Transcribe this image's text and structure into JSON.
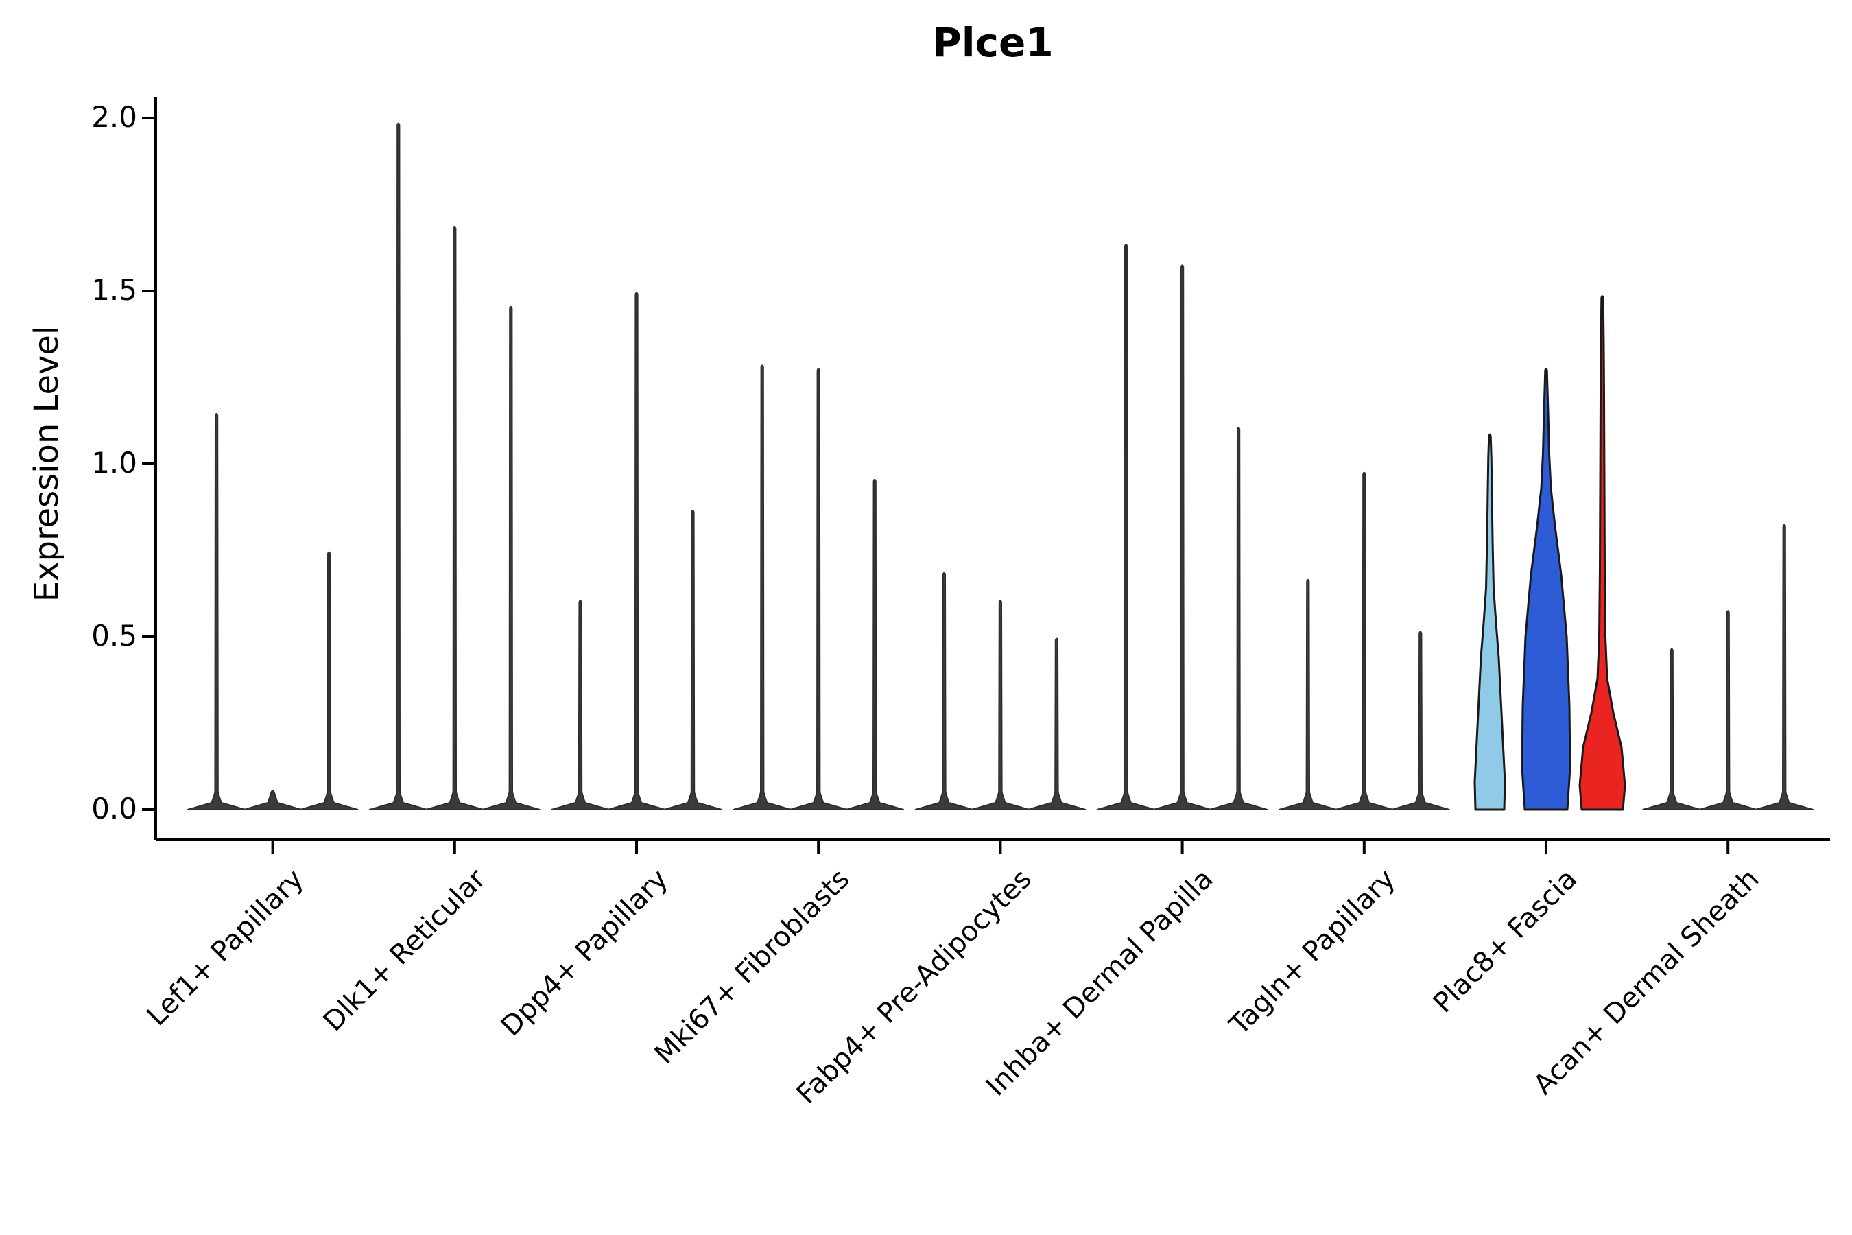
{
  "chart_data": {
    "type": "violin",
    "title": "Plce1",
    "ylabel": "Expression Level",
    "xlabel": "",
    "ylim": [
      0,
      2.05
    ],
    "yticks": [
      0.0,
      0.5,
      1.0,
      1.5,
      2.0
    ],
    "legend": "none",
    "grid": false,
    "violins_per_group": 3,
    "colors": {
      "spike_fill": "#3b3b3b",
      "spike_edge": "#2e2e2e",
      "light_blue": "#8fcbe8",
      "blue": "#2e5cd6",
      "red": "#ea2420",
      "colored_edge": "#1a1a1a"
    },
    "categories": [
      "Lef1+ Papillary",
      "Dlk1+ Reticular",
      "Dpp4+ Papillary",
      "Mki67+ Fibroblasts",
      "Fabp4+ Pre-Adipocytes",
      "Inhba+ Dermal Papilla",
      "Tagln+ Papillary",
      "Plac8+ Fascia",
      "Acan+ Dermal Sheath"
    ],
    "groups": [
      {
        "category": "Lef1+ Papillary",
        "violins": [
          {
            "max": 1.14,
            "style": "spike"
          },
          {
            "max": 0.0,
            "style": "spike"
          },
          {
            "max": 0.74,
            "style": "spike"
          }
        ]
      },
      {
        "category": "Dlk1+ Reticular",
        "violins": [
          {
            "max": 1.98,
            "style": "spike"
          },
          {
            "max": 1.68,
            "style": "spike"
          },
          {
            "max": 1.45,
            "style": "spike"
          }
        ]
      },
      {
        "category": "Dpp4+ Papillary",
        "violins": [
          {
            "max": 0.6,
            "style": "spike"
          },
          {
            "max": 1.49,
            "style": "spike"
          },
          {
            "max": 0.86,
            "style": "spike"
          }
        ]
      },
      {
        "category": "Mki67+ Fibroblasts",
        "violins": [
          {
            "max": 1.28,
            "style": "spike"
          },
          {
            "max": 1.27,
            "style": "spike"
          },
          {
            "max": 0.95,
            "style": "spike"
          }
        ]
      },
      {
        "category": "Fabp4+ Pre-Adipocytes",
        "violins": [
          {
            "max": 0.68,
            "style": "spike"
          },
          {
            "max": 0.6,
            "style": "spike"
          },
          {
            "max": 0.49,
            "style": "spike"
          }
        ]
      },
      {
        "category": "Inhba+ Dermal Papilla",
        "violins": [
          {
            "max": 1.63,
            "style": "spike"
          },
          {
            "max": 1.57,
            "style": "spike"
          },
          {
            "max": 1.1,
            "style": "spike"
          }
        ]
      },
      {
        "category": "Tagln+ Papillary",
        "violins": [
          {
            "max": 0.66,
            "style": "spike"
          },
          {
            "max": 0.97,
            "style": "spike"
          },
          {
            "max": 0.51,
            "style": "spike"
          }
        ]
      },
      {
        "category": "Plac8+ Fascia",
        "violins": [
          {
            "max": 1.08,
            "style": "violin",
            "color": "light_blue",
            "profile": [
              [
                0,
                21
              ],
              [
                0.08,
                22
              ],
              [
                0.2,
                19
              ],
              [
                0.32,
                16
              ],
              [
                0.44,
                13
              ],
              [
                0.54,
                9
              ],
              [
                0.64,
                5.5
              ],
              [
                0.78,
                4
              ],
              [
                0.92,
                3
              ],
              [
                1.02,
                2.2
              ],
              [
                1.08,
                1.2
              ]
            ]
          },
          {
            "max": 1.27,
            "style": "violin",
            "color": "blue",
            "profile": [
              [
                0,
                31
              ],
              [
                0.12,
                35
              ],
              [
                0.3,
                34
              ],
              [
                0.5,
                30
              ],
              [
                0.68,
                22
              ],
              [
                0.82,
                13
              ],
              [
                0.93,
                7
              ],
              [
                1.03,
                4.5
              ],
              [
                1.15,
                3
              ],
              [
                1.27,
                1.2
              ]
            ]
          },
          {
            "max": 1.48,
            "style": "violin",
            "color": "red",
            "profile": [
              [
                0,
                30
              ],
              [
                0.07,
                33
              ],
              [
                0.18,
                28
              ],
              [
                0.28,
                16
              ],
              [
                0.38,
                7
              ],
              [
                0.5,
                4.5
              ],
              [
                0.7,
                3.5
              ],
              [
                0.95,
                3
              ],
              [
                1.2,
                2.5
              ],
              [
                1.35,
                2
              ],
              [
                1.48,
                1.2
              ]
            ]
          }
        ]
      },
      {
        "category": "Acan+ Dermal Sheath",
        "violins": [
          {
            "max": 0.46,
            "style": "spike"
          },
          {
            "max": 0.57,
            "style": "spike"
          },
          {
            "max": 0.82,
            "style": "spike"
          }
        ]
      }
    ]
  }
}
